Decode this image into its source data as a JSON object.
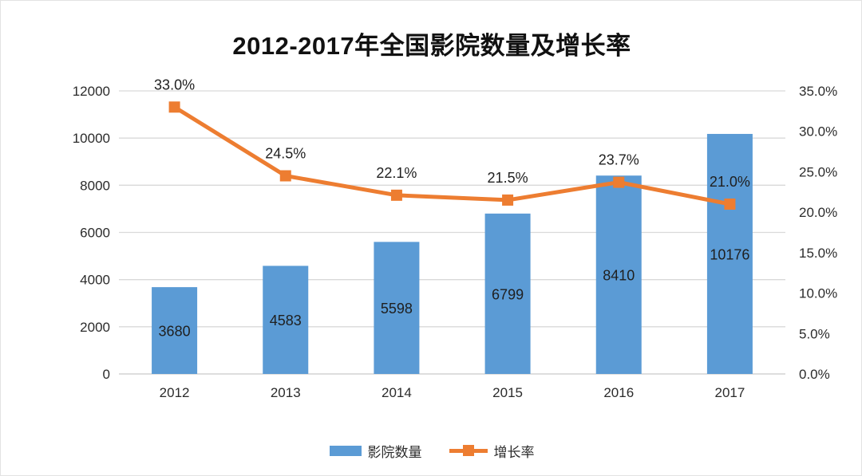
{
  "title": "2012-2017年全国影院数量及增长率",
  "colors": {
    "bar": "#5B9BD5",
    "line": "#ED7D31",
    "gridline": "#D9D9D9",
    "axis_line": "#C9C9C9",
    "tick_text": "#2b2b2b",
    "label_text": "#1f1f1f"
  },
  "legend": {
    "items": [
      {
        "label": "影院数量",
        "type": "bar"
      },
      {
        "label": "增长率",
        "type": "line"
      }
    ],
    "position": "bottom"
  },
  "chart_data": {
    "type": "bar+line",
    "title": "2012-2017年全国影院数量及增长率",
    "categories": [
      "2012",
      "2013",
      "2014",
      "2015",
      "2016",
      "2017"
    ],
    "series": [
      {
        "name": "影院数量",
        "type": "bar",
        "axis": "left",
        "values": [
          3680,
          4583,
          5598,
          6799,
          8410,
          10176
        ],
        "labels": [
          "3680",
          "4583",
          "5598",
          "6799",
          "8410",
          "10176"
        ],
        "label_position": "inside-center"
      },
      {
        "name": "增长率",
        "type": "line",
        "axis": "right",
        "marker": "square",
        "values": [
          33.0,
          24.5,
          22.1,
          21.5,
          23.7,
          21.0
        ],
        "labels": [
          "33.0%",
          "24.5%",
          "22.1%",
          "21.5%",
          "23.7%",
          "21.0%"
        ],
        "label_position": "above"
      }
    ],
    "left_axis": {
      "min": 0,
      "max": 12000,
      "step": 2000,
      "ticks": [
        "0",
        "2000",
        "4000",
        "6000",
        "8000",
        "10000",
        "12000"
      ]
    },
    "right_axis": {
      "min": 0,
      "max": 35,
      "step": 5,
      "ticks": [
        "0.0%",
        "5.0%",
        "10.0%",
        "15.0%",
        "20.0%",
        "25.0%",
        "30.0%",
        "35.0%"
      ]
    },
    "grid": true,
    "legend_position": "bottom"
  }
}
